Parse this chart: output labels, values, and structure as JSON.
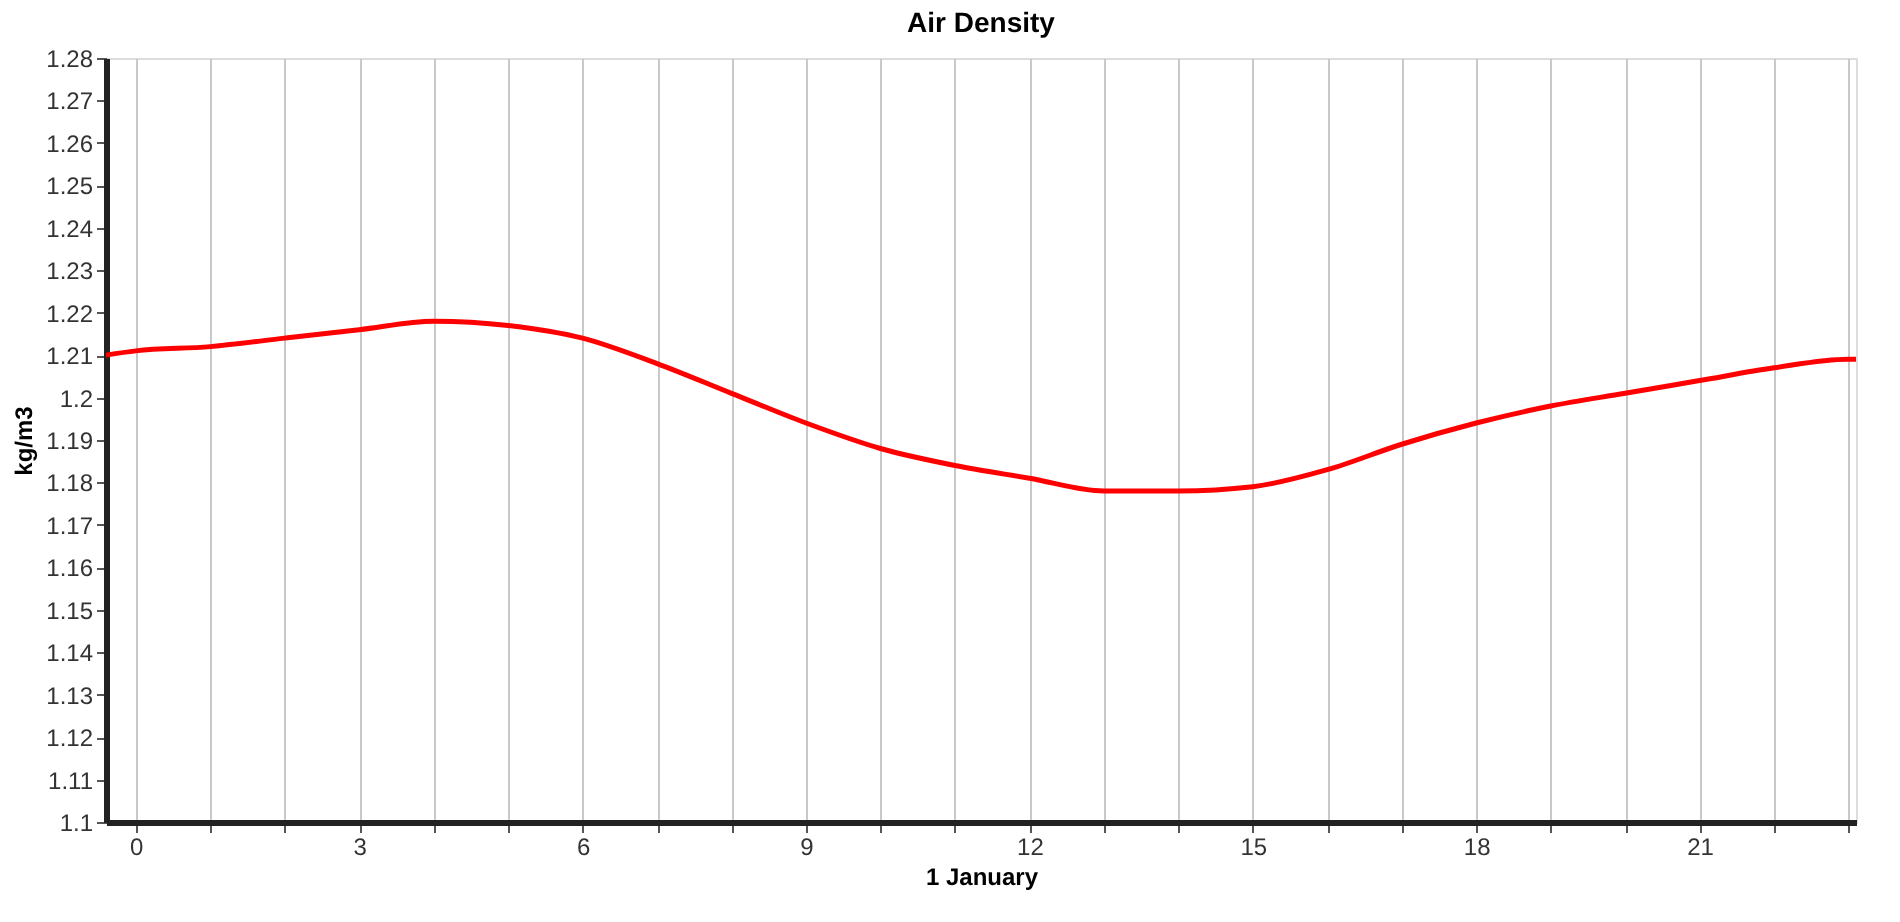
{
  "chart_data": {
    "type": "line",
    "title": "Air Density",
    "xlabel": "1 January",
    "ylabel": "kg/m3",
    "x": [
      -0.4,
      0,
      1,
      2,
      3,
      4,
      5,
      6,
      7,
      8,
      9,
      10,
      11,
      12,
      13,
      14,
      15,
      16,
      17,
      18,
      19,
      20,
      21,
      22,
      23,
      23.1
    ],
    "series": [
      {
        "color": "#ff0000",
        "values": [
          1.21,
          1.211,
          1.212,
          1.214,
          1.216,
          1.218,
          1.217,
          1.214,
          1.208,
          1.201,
          1.194,
          1.188,
          1.184,
          1.181,
          1.178,
          1.178,
          1.179,
          1.183,
          1.189,
          1.194,
          1.198,
          1.201,
          1.204,
          1.207,
          1.209,
          1.209
        ]
      }
    ],
    "xlim": [
      -0.4,
      23.1
    ],
    "xticks": [
      0,
      {
        "value": 1,
        "label": null
      },
      {
        "value": 2,
        "label": null
      },
      3,
      {
        "value": 4,
        "label": null
      },
      {
        "value": 5,
        "label": null
      },
      6,
      {
        "value": 7,
        "label": null
      },
      {
        "value": 8,
        "label": null
      },
      9,
      {
        "value": 10,
        "label": null
      },
      {
        "value": 11,
        "label": null
      },
      12,
      {
        "value": 13,
        "label": null
      },
      {
        "value": 14,
        "label": null
      },
      15,
      {
        "value": 16,
        "label": null
      },
      {
        "value": 17,
        "label": null
      },
      18,
      {
        "value": 19,
        "label": null
      },
      {
        "value": 20,
        "label": null
      },
      21,
      {
        "value": 22,
        "label": null
      },
      {
        "value": 23,
        "label": null
      }
    ],
    "ylim": [
      1.1,
      1.28
    ],
    "yticks": [
      1.1,
      1.11,
      1.12,
      1.13,
      1.14,
      1.15,
      1.16,
      1.17,
      1.18,
      1.19,
      1.2,
      1.21,
      1.22,
      1.23,
      1.24,
      1.25,
      1.26,
      1.27,
      1.28
    ],
    "grid": "x",
    "marker": "none",
    "line_style": "solid"
  }
}
